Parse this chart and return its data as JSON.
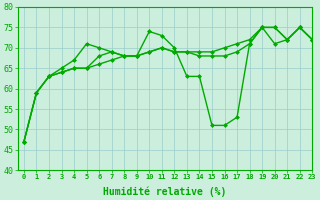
{
  "line1": [
    47,
    59,
    63,
    64,
    65,
    65,
    68,
    69,
    68,
    68,
    69,
    70,
    69,
    69,
    69,
    69,
    70,
    71,
    72,
    75,
    75,
    72,
    75,
    72
  ],
  "line2": [
    47,
    59,
    63,
    65,
    67,
    71,
    70,
    69,
    68,
    68,
    74,
    73,
    70,
    63,
    63,
    51,
    51,
    53,
    71,
    75,
    71,
    72,
    75,
    72
  ],
  "line3": [
    47,
    59,
    63,
    64,
    65,
    65,
    66,
    67,
    68,
    68,
    69,
    70,
    69,
    69,
    68,
    68,
    68,
    69,
    71,
    75,
    75,
    72,
    75,
    72
  ],
  "x": [
    0,
    1,
    2,
    3,
    4,
    5,
    6,
    7,
    8,
    9,
    10,
    11,
    12,
    13,
    14,
    15,
    16,
    17,
    18,
    19,
    20,
    21,
    22,
    23
  ],
  "xlabel": "Humidité relative (%)",
  "ylim": [
    40,
    80
  ],
  "yticks": [
    40,
    45,
    50,
    55,
    60,
    65,
    70,
    75,
    80
  ],
  "xlim": [
    -0.5,
    23
  ],
  "xticks": [
    0,
    1,
    2,
    3,
    4,
    5,
    6,
    7,
    8,
    9,
    10,
    11,
    12,
    13,
    14,
    15,
    16,
    17,
    18,
    19,
    20,
    21,
    22,
    23
  ],
  "line_color": "#00aa00",
  "bg_color": "#cceedd",
  "grid_color": "#99cccc",
  "marker": "D",
  "marker_size": 2.5,
  "line_width": 1.0,
  "xlabel_fontsize": 7,
  "xtick_fontsize": 5,
  "ytick_fontsize": 6
}
